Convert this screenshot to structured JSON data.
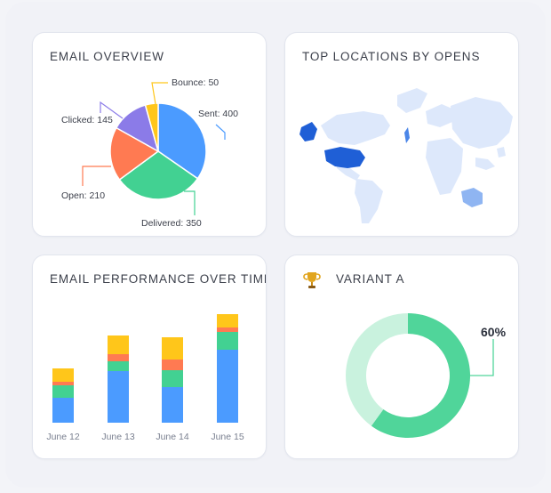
{
  "colors": {
    "sent": "#4b9bff",
    "delivered": "#42d192",
    "open": "#ff7a52",
    "clicked": "#8b7be8",
    "bounce": "#ffc61a",
    "map_land": "#dde8fb",
    "map_highlight": "#1f5fd6",
    "donut_main": "#50d59a",
    "donut_light": "#c9f2de"
  },
  "overview": {
    "title": "EMAIL OVERVIEW",
    "chart_data": {
      "type": "pie",
      "slices": [
        {
          "name": "Sent",
          "label": "Sent: 400",
          "value": 400,
          "color": "#4b9bff"
        },
        {
          "name": "Delivered",
          "label": "Delivered: 350",
          "value": 350,
          "color": "#42d192"
        },
        {
          "name": "Open",
          "label": "Open: 210",
          "value": 210,
          "color": "#ff7a52"
        },
        {
          "name": "Clicked",
          "label": "Clicked: 145",
          "value": 145,
          "color": "#8b7be8"
        },
        {
          "name": "Bounce",
          "label": "Bounce: 50",
          "value": 50,
          "color": "#ffc61a"
        }
      ]
    }
  },
  "locations": {
    "title": "TOP LOCATIONS BY OPENS"
  },
  "performance": {
    "title": "EMAIL PERFORMANCE OVER TIME",
    "chart_data": {
      "type": "bar",
      "stacked": true,
      "categories": [
        "June 12",
        "June 13",
        "June 14",
        "June 15"
      ],
      "series": [
        {
          "values": [
            28,
            58,
            40,
            82
          ],
          "color": "#4b9bff"
        },
        {
          "values": [
            14,
            11,
            19,
            20
          ],
          "color": "#42d192"
        },
        {
          "values": [
            4,
            8,
            12,
            5
          ],
          "color": "#ff7a52"
        },
        {
          "values": [
            15,
            21,
            25,
            15
          ],
          "color": "#ffc61a"
        }
      ],
      "ylim": [
        0,
        130
      ]
    }
  },
  "variant": {
    "title": "VARIANT A",
    "percent_label": "60%",
    "icon": "trophy-icon",
    "chart_data": {
      "type": "pie",
      "donut": true,
      "values": [
        60,
        40
      ]
    }
  }
}
